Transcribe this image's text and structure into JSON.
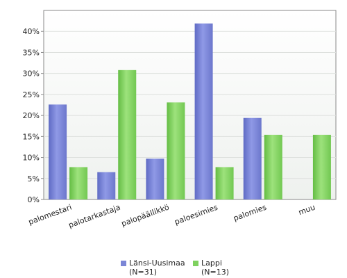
{
  "chart_data": {
    "type": "bar",
    "title": "",
    "xlabel": "",
    "ylabel": "",
    "categories": [
      "palomestari",
      "palotarkastaja",
      "palopäällikkö",
      "paloesimies",
      "palomies",
      "muu"
    ],
    "series": [
      {
        "name": "Länsi-Uusimaa",
        "n_label": "(N=31)",
        "color": "#7b86d6",
        "values": [
          22.6,
          6.5,
          9.7,
          41.9,
          19.4,
          0
        ]
      },
      {
        "name": "Lappi",
        "n_label": "(N=13)",
        "color": "#7fd15f",
        "values": [
          7.7,
          30.8,
          23.1,
          7.7,
          15.4,
          15.4
        ]
      }
    ],
    "y_ticks": [
      "0%",
      "5%",
      "10%",
      "15%",
      "20%",
      "25%",
      "30%",
      "35%",
      "40%"
    ],
    "ylim": [
      0,
      45
    ],
    "grid": true,
    "legend_position": "bottom"
  }
}
